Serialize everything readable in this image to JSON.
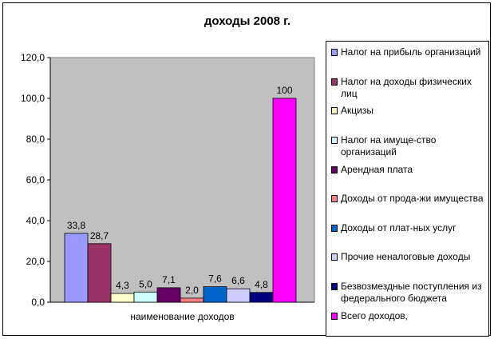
{
  "chart_data": {
    "type": "bar",
    "title": "доходы 2008 г.",
    "xlabel": "наименование доходов",
    "ylabel": "",
    "ylim": [
      0,
      120
    ],
    "yticks": [
      "0,0",
      "20,0",
      "40,0",
      "60,0",
      "80,0",
      "100,0",
      "120,0"
    ],
    "grid": false,
    "legend_position": "right",
    "series": [
      {
        "name": "Налог на прибыль организаций",
        "value": 33.8,
        "label": "33,8",
        "color": "#9999ff"
      },
      {
        "name": "Налог на доходы физических лиц",
        "value": 28.7,
        "label": "28,7",
        "color": "#993366"
      },
      {
        "name": "Акцизы",
        "value": 4.3,
        "label": "4,3",
        "color": "#ffffcc"
      },
      {
        "name": "Налог на имуще-ство организаций",
        "value": 5.0,
        "label": "5,0",
        "color": "#ccffff"
      },
      {
        "name": "Арендная плата",
        "value": 7.1,
        "label": "7,1",
        "color": "#660066"
      },
      {
        "name": "Доходы от прода-жи имущества",
        "value": 2.0,
        "label": "2,0",
        "color": "#ff8080"
      },
      {
        "name": "Доходы от плат-ных услуг",
        "value": 7.6,
        "label": "7,6",
        "color": "#0066cc"
      },
      {
        "name": "Прочие неналоговые доходы",
        "value": 6.6,
        "label": "6,6",
        "color": "#ccccff"
      },
      {
        "name": "Безвозмездные поступления из федерального бюджета",
        "value": 4.8,
        "label": "4,8",
        "color": "#000080"
      },
      {
        "name": "Всего доходов,",
        "value": 100,
        "label": "100",
        "color": "#ff00ff"
      }
    ],
    "plot_background": "#c0c0c0"
  }
}
